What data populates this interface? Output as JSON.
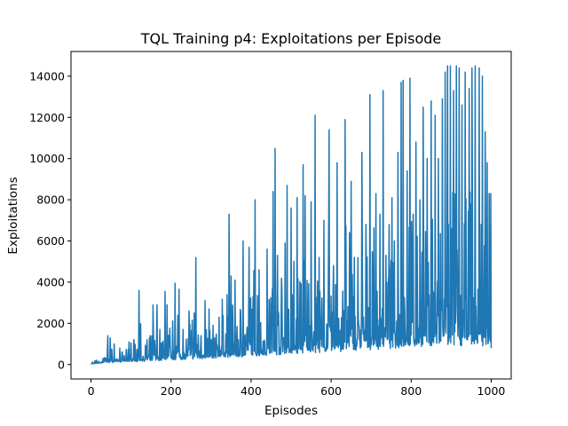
{
  "chart_data": {
    "type": "line",
    "title": "TQL Training p4: Exploitations per Episode",
    "xlabel": "Episodes",
    "ylabel": "Exploitations",
    "xlim": [
      -50,
      1050
    ],
    "ylim": [
      -700,
      15200
    ],
    "grid": false,
    "legend": "none",
    "xticks": [
      0,
      200,
      400,
      600,
      800,
      1000
    ],
    "xtick_labels": [
      "0",
      "200",
      "400",
      "600",
      "800",
      "1000"
    ],
    "yticks": [
      0,
      2000,
      4000,
      6000,
      8000,
      10000,
      12000,
      14000
    ],
    "ytick_labels": [
      "0",
      "2000",
      "4000",
      "6000",
      "8000",
      "10000",
      "12000",
      "14000"
    ],
    "series": [
      {
        "color": "#1f77b4",
        "x_start": 0,
        "x_end": 1000,
        "num_points": 1001,
        "peaks": [
          [
            30,
            300
          ],
          [
            42,
            1400
          ],
          [
            48,
            1300
          ],
          [
            58,
            1000
          ],
          [
            72,
            800
          ],
          [
            95,
            1100
          ],
          [
            100,
            1050
          ],
          [
            120,
            3600
          ],
          [
            140,
            1200
          ],
          [
            155,
            2900
          ],
          [
            165,
            2900
          ],
          [
            172,
            1700
          ],
          [
            185,
            3550
          ],
          [
            190,
            2900
          ],
          [
            210,
            3950
          ],
          [
            220,
            3650
          ],
          [
            230,
            1700
          ],
          [
            245,
            2600
          ],
          [
            262,
            5200
          ],
          [
            275,
            1400
          ],
          [
            285,
            3100
          ],
          [
            295,
            2700
          ],
          [
            305,
            1900
          ],
          [
            345,
            7300
          ],
          [
            350,
            4300
          ],
          [
            360,
            4100
          ],
          [
            380,
            6000
          ],
          [
            395,
            5700
          ],
          [
            410,
            8000
          ],
          [
            420,
            4600
          ],
          [
            440,
            5600
          ],
          [
            455,
            8400
          ],
          [
            460,
            10500
          ],
          [
            485,
            5900
          ],
          [
            490,
            8700
          ],
          [
            500,
            7600
          ],
          [
            515,
            8100
          ],
          [
            530,
            9700
          ],
          [
            535,
            8200
          ],
          [
            550,
            7900
          ],
          [
            560,
            12100
          ],
          [
            570,
            5200
          ],
          [
            582,
            7000
          ],
          [
            595,
            11400
          ],
          [
            615,
            9800
          ],
          [
            635,
            11900
          ],
          [
            650,
            8900
          ],
          [
            658,
            5200
          ],
          [
            667,
            5200
          ],
          [
            677,
            10300
          ],
          [
            687,
            6800
          ],
          [
            697,
            13100
          ],
          [
            712,
            8300
          ],
          [
            722,
            7300
          ],
          [
            730,
            13300
          ],
          [
            737,
            5300
          ],
          [
            745,
            6800
          ],
          [
            752,
            8100
          ],
          [
            758,
            6000
          ],
          [
            767,
            10300
          ],
          [
            775,
            13700
          ],
          [
            780,
            13800
          ],
          [
            790,
            9400
          ],
          [
            797,
            13900
          ],
          [
            805,
            7300
          ],
          [
            812,
            10800
          ],
          [
            822,
            8000
          ],
          [
            830,
            12500
          ],
          [
            840,
            10000
          ],
          [
            850,
            12800
          ],
          [
            860,
            12100
          ],
          [
            868,
            10000
          ],
          [
            878,
            12900
          ],
          [
            885,
            14200
          ],
          [
            891,
            14500
          ],
          [
            898,
            14500
          ],
          [
            906,
            13300
          ],
          [
            913,
            14500
          ],
          [
            920,
            14400
          ],
          [
            927,
            12600
          ],
          [
            935,
            14200
          ],
          [
            945,
            13400
          ],
          [
            952,
            14400
          ],
          [
            960,
            14500
          ],
          [
            970,
            14400
          ],
          [
            978,
            14000
          ],
          [
            985,
            11300
          ],
          [
            990,
            9800
          ],
          [
            995,
            8300
          ],
          [
            999,
            8300
          ],
          [
            1000,
            4500
          ]
        ]
      }
    ]
  }
}
